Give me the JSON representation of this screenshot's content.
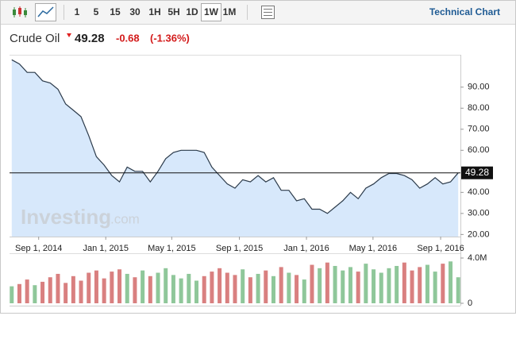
{
  "toolbar": {
    "intervals": [
      "1",
      "5",
      "15",
      "30",
      "1H",
      "5H",
      "1D",
      "1W",
      "1M"
    ],
    "selected_interval": 7,
    "link": "Technical Chart"
  },
  "header": {
    "name": "Crude Oil",
    "change": "-0.68",
    "change_pct": "(-1.36%)"
  },
  "watermark": {
    "brand": "Investing",
    "suffix": ".com"
  },
  "chart_data": {
    "type": "area",
    "x": [
      "2014-07-14",
      "2014-07-28",
      "2014-08-11",
      "2014-08-25",
      "2014-09-08",
      "2014-09-22",
      "2014-10-06",
      "2014-10-20",
      "2014-11-03",
      "2014-11-17",
      "2014-12-01",
      "2014-12-15",
      "2014-12-29",
      "2015-01-12",
      "2015-01-26",
      "2015-02-09",
      "2015-02-23",
      "2015-03-09",
      "2015-03-23",
      "2015-04-06",
      "2015-04-20",
      "2015-05-04",
      "2015-05-18",
      "2015-06-01",
      "2015-06-15",
      "2015-06-29",
      "2015-07-13",
      "2015-07-27",
      "2015-08-10",
      "2015-08-24",
      "2015-09-07",
      "2015-09-21",
      "2015-10-05",
      "2015-10-19",
      "2015-11-02",
      "2015-11-16",
      "2015-11-30",
      "2015-12-14",
      "2015-12-28",
      "2016-01-11",
      "2016-01-25",
      "2016-02-08",
      "2016-02-22",
      "2016-03-07",
      "2016-03-21",
      "2016-04-04",
      "2016-04-18",
      "2016-05-02",
      "2016-05-16",
      "2016-05-30",
      "2016-06-13",
      "2016-06-27",
      "2016-07-11",
      "2016-07-25",
      "2016-08-08",
      "2016-08-22",
      "2016-09-05",
      "2016-09-19",
      "2016-10-03"
    ],
    "series": [
      {
        "name": "Crude Oil",
        "color": "#2b3a4a",
        "fill": "#d7e8fb",
        "values": [
          103,
          101,
          97,
          97,
          93,
          92,
          89,
          82,
          79,
          76,
          67,
          57,
          53,
          48,
          45,
          52,
          50,
          50,
          45,
          50,
          56,
          59,
          60,
          60,
          60,
          59,
          52,
          48,
          44,
          42,
          46,
          45,
          48,
          45,
          47,
          41,
          41,
          36,
          37,
          32,
          32,
          30,
          33,
          36,
          40,
          37,
          42,
          44,
          47,
          49,
          49,
          48,
          46,
          42,
          44,
          47,
          44,
          45,
          49.28
        ]
      },
      {
        "name": "Volume",
        "axis": "y2",
        "up_color": "#8fc79a",
        "down_color": "#d98080",
        "values": [
          1500000,
          1700000,
          2100000,
          1600000,
          1900000,
          2300000,
          2600000,
          1800000,
          2400000,
          2000000,
          2700000,
          2900000,
          2200000,
          2800000,
          3000000,
          2600000,
          2300000,
          2900000,
          2400000,
          2700000,
          3100000,
          2500000,
          2200000,
          2600000,
          2000000,
          2400000,
          2800000,
          3100000,
          2700000,
          2500000,
          3000000,
          2300000,
          2600000,
          2900000,
          2400000,
          3200000,
          2700000,
          2500000,
          2100000,
          3400000,
          3100000,
          3600000,
          3300000,
          2900000,
          3200000,
          2800000,
          3500000,
          3000000,
          2700000,
          3100000,
          3300000,
          3600000,
          2900000,
          3200000,
          3400000,
          2800000,
          3500000,
          3700000,
          2300000
        ]
      }
    ],
    "last_price": 49.28,
    "xlim": [
      "2014-07-10",
      "2016-10-07"
    ],
    "xticks": [
      {
        "value": "2014-09-01",
        "label": "Sep 1, 2014"
      },
      {
        "value": "2015-01-01",
        "label": "Jan 1, 2015"
      },
      {
        "value": "2015-05-01",
        "label": "May 1, 2015"
      },
      {
        "value": "2015-09-01",
        "label": "Sep 1, 2015"
      },
      {
        "value": "2016-01-01",
        "label": "Jan 1, 2016"
      },
      {
        "value": "2016-05-01",
        "label": "May 1, 2016"
      },
      {
        "value": "2016-09-01",
        "label": "Sep 1, 2016"
      }
    ],
    "ylim": [
      19,
      105
    ],
    "yticks": [
      {
        "value": 20,
        "label": "20.00"
      },
      {
        "value": 30,
        "label": "30.00"
      },
      {
        "value": 40,
        "label": "40.00"
      },
      {
        "value": 60,
        "label": "60.00"
      },
      {
        "value": 70,
        "label": "70.00"
      },
      {
        "value": 80,
        "label": "80.00"
      },
      {
        "value": 90,
        "label": "90.00"
      }
    ],
    "y2lim": [
      0,
      4000000
    ],
    "y2ticks": [
      0,
      {
        "value": 4000000,
        "label": "4.0M"
      }
    ]
  }
}
